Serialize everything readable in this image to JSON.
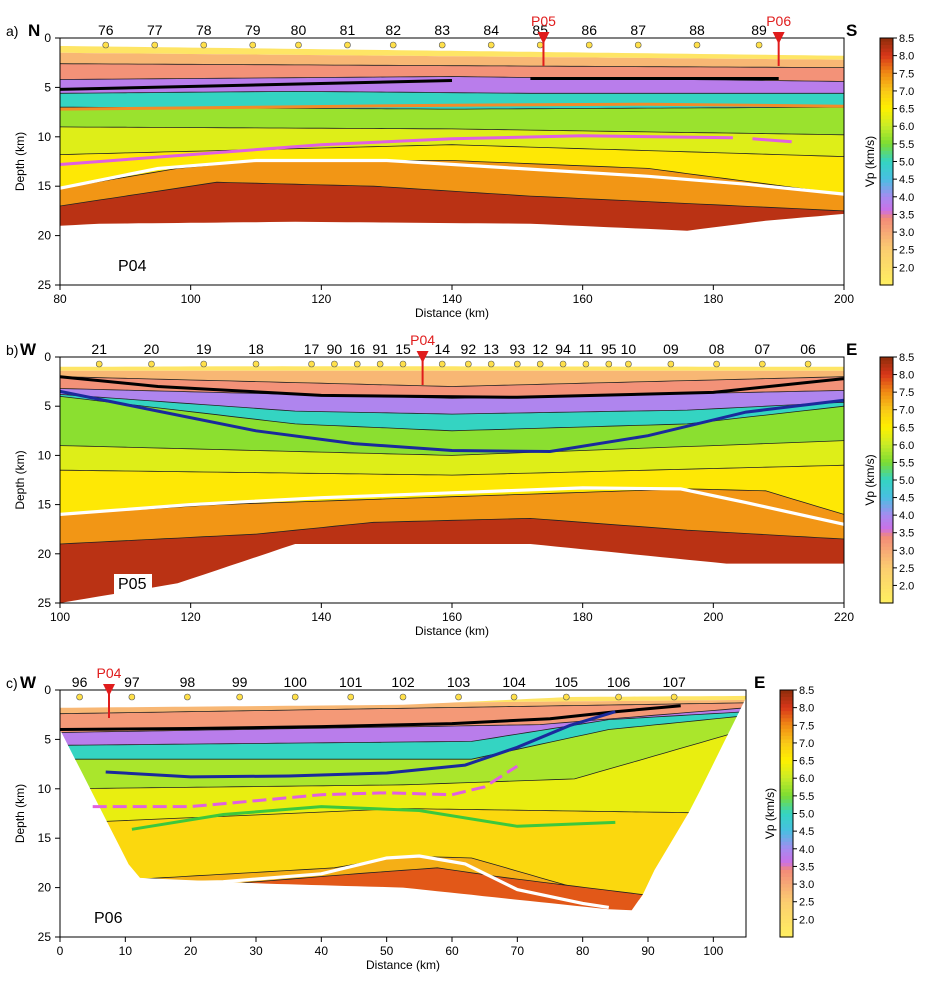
{
  "chart_data": [
    {
      "type": "heatmap",
      "panel_label": "a)",
      "profile_label": "P04",
      "left_direction": "N",
      "right_direction": "S",
      "xlabel": "Distance (km)",
      "ylabel": "Depth (km)",
      "xlim": [
        80,
        200
      ],
      "ylim": [
        25,
        0
      ],
      "xticks": [
        80,
        100,
        120,
        140,
        160,
        180,
        200
      ],
      "yticks": [
        0,
        5,
        10,
        15,
        20,
        25
      ],
      "stations": {
        "labels": [
          "76",
          "77",
          "78",
          "79",
          "80",
          "81",
          "82",
          "83",
          "84",
          "85",
          "86",
          "87",
          "88",
          "89"
        ],
        "x": [
          87,
          94.5,
          102,
          109.5,
          116.5,
          124,
          131,
          138.5,
          146,
          153.5,
          161,
          168.5,
          177.5,
          187
        ]
      },
      "crossings": [
        {
          "label": "P05",
          "x": 154
        },
        {
          "label": "P06",
          "x": 190
        }
      ],
      "interfaces": [
        {
          "name": "black",
          "color": "#000000",
          "x": [
            80,
            140
          ],
          "depth": [
            5.2,
            4.3
          ]
        },
        {
          "name": "black-2",
          "color": "#000000",
          "x": [
            152,
            190
          ],
          "depth": [
            4.1,
            4.1
          ]
        },
        {
          "name": "orange",
          "color": "#f28c28",
          "x": [
            80,
            110,
            140,
            170,
            200
          ],
          "depth": [
            7.2,
            7.0,
            6.8,
            6.7,
            6.9
          ]
        },
        {
          "name": "magenta",
          "color": "#e060e0",
          "x": [
            80,
            100,
            120,
            140,
            160,
            183
          ],
          "depth": [
            12.8,
            11.8,
            10.8,
            10.2,
            9.9,
            10.1
          ]
        },
        {
          "name": "magenta-2",
          "color": "#e060e0",
          "x": [
            186,
            192
          ],
          "depth": [
            10.2,
            10.5
          ]
        },
        {
          "name": "moho",
          "color": "#ffffff",
          "x": [
            80,
            95,
            110,
            130,
            150,
            170,
            185,
            200
          ],
          "depth": [
            15.2,
            13.2,
            12.4,
            12.4,
            13.2,
            14.0,
            14.8,
            15.8
          ]
        }
      ]
    },
    {
      "type": "heatmap",
      "panel_label": "b)",
      "profile_label": "P05",
      "left_direction": "W",
      "right_direction": "E",
      "xlabel": "Distance (km)",
      "ylabel": "Depth (km)",
      "xlim": [
        100,
        220
      ],
      "ylim": [
        25,
        0
      ],
      "xticks": [
        100,
        120,
        140,
        160,
        180,
        200,
        220
      ],
      "yticks": [
        0,
        5,
        10,
        15,
        20,
        25
      ],
      "stations": {
        "labels": [
          "21",
          "20",
          "19",
          "18",
          "17",
          "90",
          "16",
          "91",
          "15",
          "14",
          "92",
          "13",
          "93",
          "12",
          "94",
          "11",
          "95",
          "10",
          "09",
          "08",
          "07",
          "06"
        ],
        "x": [
          106,
          114,
          122,
          130,
          138.5,
          142,
          145.5,
          149,
          152.5,
          158.5,
          162.5,
          166,
          170,
          173.5,
          177,
          180.5,
          184,
          187,
          193.5,
          200.5,
          207.5,
          214.5
        ]
      },
      "crossings": [
        {
          "label": "P04",
          "x": 155.5
        }
      ],
      "interfaces": [
        {
          "name": "black",
          "color": "#000000",
          "x": [
            100,
            115,
            140,
            170,
            200,
            220
          ],
          "depth": [
            2.0,
            3.0,
            3.9,
            4.1,
            3.6,
            2.2
          ]
        },
        {
          "name": "blue",
          "color": "#1a2a9c",
          "x": [
            100,
            115,
            130,
            145,
            160,
            175,
            190,
            205,
            220
          ],
          "depth": [
            3.5,
            5.5,
            7.5,
            8.8,
            9.5,
            9.6,
            8.0,
            5.6,
            4.4
          ]
        },
        {
          "name": "moho",
          "color": "#ffffff",
          "x": [
            100,
            120,
            140,
            160,
            180,
            195,
            205,
            220
          ],
          "depth": [
            16.0,
            15.0,
            14.3,
            13.8,
            13.3,
            13.4,
            14.8,
            17.0
          ]
        }
      ]
    },
    {
      "type": "heatmap",
      "panel_label": "c)",
      "profile_label": "P06",
      "left_direction": "W",
      "right_direction": "E",
      "xlabel": "Distance (km)",
      "ylabel": "Depth (km)",
      "xlim": [
        0,
        105
      ],
      "ylim": [
        25,
        0
      ],
      "xticks": [
        0,
        10,
        20,
        30,
        40,
        50,
        60,
        70,
        80,
        90,
        100
      ],
      "yticks": [
        0,
        5,
        10,
        15,
        20,
        25
      ],
      "stations": {
        "labels": [
          "96",
          "97",
          "98",
          "99",
          "100",
          "101",
          "102",
          "103",
          "104",
          "105",
          "106",
          "107"
        ],
        "x": [
          3,
          11,
          19.5,
          27.5,
          36,
          44.5,
          52.5,
          61,
          69.5,
          77.5,
          85.5,
          94
        ]
      },
      "crossings": [
        {
          "label": "P04",
          "x": 7.5
        }
      ],
      "interfaces": [
        {
          "name": "black",
          "color": "#000000",
          "x": [
            0,
            20,
            40,
            60,
            75,
            85,
            95
          ],
          "depth": [
            4.0,
            3.9,
            3.7,
            3.4,
            2.9,
            2.2,
            1.6
          ]
        },
        {
          "name": "blue",
          "color": "#1a2a9c",
          "x": [
            7,
            20,
            35,
            50,
            62,
            70,
            78,
            85
          ],
          "depth": [
            8.3,
            8.8,
            8.7,
            8.4,
            7.6,
            5.8,
            3.6,
            2.2
          ]
        },
        {
          "name": "magenta",
          "color": "#e060e0",
          "x": [
            5,
            20,
            30,
            40,
            50,
            60,
            65,
            70
          ],
          "depth": [
            11.8,
            11.8,
            11.2,
            10.6,
            10.4,
            10.6,
            9.8,
            7.7
          ]
        },
        {
          "name": "green",
          "color": "#3cc83c",
          "x": [
            11,
            25,
            40,
            55,
            70,
            85
          ],
          "depth": [
            14.1,
            12.6,
            11.8,
            12.2,
            13.8,
            13.4
          ]
        },
        {
          "name": "moho",
          "color": "#ffffff",
          "x": [
            11,
            25,
            40,
            50,
            55,
            62,
            70,
            80,
            84
          ],
          "depth": [
            19.6,
            19.4,
            18.6,
            17.0,
            16.8,
            17.6,
            20.2,
            21.6,
            22.0
          ]
        }
      ]
    }
  ],
  "colorbar": {
    "label": "Vp (km/s)",
    "ticks": [
      "8.5",
      "8.0",
      "7.5",
      "7.0",
      "6.5",
      "6.0",
      "5.5",
      "5.0",
      "4.5",
      "4.0",
      "3.5",
      "3.0",
      "2.5",
      "2.0"
    ],
    "values": [
      8.5,
      8.0,
      7.5,
      7.0,
      6.5,
      6.0,
      5.5,
      5.0,
      4.5,
      4.0,
      3.5,
      3.0,
      2.5,
      2.0
    ],
    "range": [
      1.5,
      8.5
    ],
    "palette": [
      {
        "v": 1.5,
        "c": "#ffef60"
      },
      {
        "v": 2.5,
        "c": "#fbcd70"
      },
      {
        "v": 3.0,
        "c": "#f6a876"
      },
      {
        "v": 3.4,
        "c": "#f28a78"
      },
      {
        "v": 3.6,
        "c": "#cc6fe6"
      },
      {
        "v": 4.0,
        "c": "#a58cf0"
      },
      {
        "v": 4.5,
        "c": "#49bfe2"
      },
      {
        "v": 5.0,
        "c": "#34d4c2"
      },
      {
        "v": 5.5,
        "c": "#7cdc32"
      },
      {
        "v": 6.0,
        "c": "#c8ec28"
      },
      {
        "v": 6.5,
        "c": "#fff000"
      },
      {
        "v": 7.0,
        "c": "#f9c818"
      },
      {
        "v": 7.5,
        "c": "#f08a14"
      },
      {
        "v": 8.0,
        "c": "#d8361a"
      },
      {
        "v": 8.5,
        "c": "#8c2d0a"
      }
    ]
  },
  "colors": {
    "station_marker": "#ffe04a",
    "crossing_marker": "#e01c1c"
  }
}
